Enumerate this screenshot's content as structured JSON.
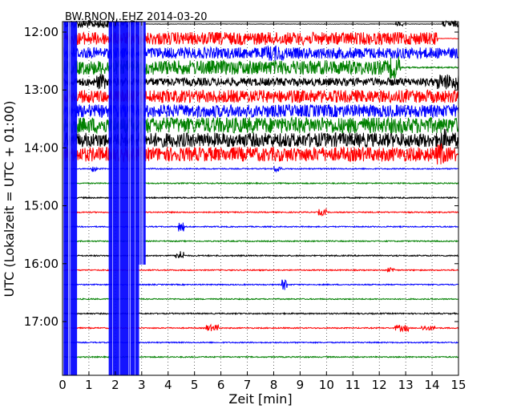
{
  "chart_data": {
    "type": "line",
    "title": "BW.RNON..EHZ 2014-03-20",
    "xlabel": "Zeit  [min]",
    "ylabel": "UTC (Lokalzeit = UTC + 01:00)",
    "xlim": [
      0,
      15
    ],
    "x_ticks": [
      "0",
      "1",
      "2",
      "3",
      "4",
      "5",
      "6",
      "7",
      "8",
      "9",
      "10",
      "11",
      "12",
      "13",
      "14",
      "15"
    ],
    "y_ticks": [
      {
        "label": "12:00",
        "row": 0
      },
      {
        "label": "13:00",
        "row": 4
      },
      {
        "label": "14:00",
        "row": 8
      },
      {
        "label": "15:00",
        "row": 12
      },
      {
        "label": "16:00",
        "row": 16
      },
      {
        "label": "17:00",
        "row": 20
      }
    ],
    "row_minutes": 15,
    "grid": "vertical-dotted",
    "colors": [
      "#000000",
      "#ff0000",
      "#0000ff",
      "#008000"
    ],
    "traces": [
      {
        "start": "11:45",
        "color": "#000000",
        "noise": 0.28,
        "events": [
          {
            "t": 0.1,
            "w": 2.7,
            "a": 5
          },
          {
            "t": 12.6,
            "w": 0.3,
            "a": 3
          },
          {
            "t": 14.4,
            "w": 0.6,
            "a": 4
          }
        ]
      },
      {
        "start": "12:00",
        "color": "#ff0000",
        "noise": 0.35,
        "events": [
          {
            "t": 0.1,
            "w": 14.1,
            "a": 8
          }
        ]
      },
      {
        "start": "12:15",
        "color": "#0000ff",
        "noise": 0.7,
        "events": [
          {
            "t": 0.0,
            "w": 7.7,
            "a": 7
          },
          {
            "t": 7.7,
            "w": 0.7,
            "a": 10
          },
          {
            "t": 8.4,
            "w": 6.6,
            "a": 7
          }
        ]
      },
      {
        "start": "12:30",
        "color": "#008000",
        "noise": 0.9,
        "events": [
          {
            "t": 0.0,
            "w": 12.4,
            "a": 9
          },
          {
            "t": 12.4,
            "w": 0.4,
            "a": 14
          }
        ]
      },
      {
        "start": "12:45",
        "color": "#000000",
        "noise": 0.6,
        "events": [
          {
            "t": 0.0,
            "w": 15,
            "a": 5
          },
          {
            "t": 1.3,
            "w": 0.3,
            "a": 10
          },
          {
            "t": 14.2,
            "w": 0.8,
            "a": 10
          }
        ]
      },
      {
        "start": "13:00",
        "color": "#ff0000",
        "noise": 0.8,
        "events": [
          {
            "t": 0.0,
            "w": 15,
            "a": 8
          }
        ]
      },
      {
        "start": "13:15",
        "color": "#0000ff",
        "noise": 0.8,
        "events": [
          {
            "t": 0.0,
            "w": 15,
            "a": 8
          }
        ]
      },
      {
        "start": "13:30",
        "color": "#008000",
        "noise": 1.0,
        "events": [
          {
            "t": 0.0,
            "w": 15,
            "a": 10
          }
        ]
      },
      {
        "start": "13:45",
        "color": "#000000",
        "noise": 0.9,
        "events": [
          {
            "t": 0.0,
            "w": 15,
            "a": 9
          },
          {
            "t": 14.3,
            "w": 0.3,
            "a": 14
          }
        ]
      },
      {
        "start": "14:00",
        "color": "#ff0000",
        "noise": 0.9,
        "events": [
          {
            "t": 0.0,
            "w": 14.9,
            "a": 9
          },
          {
            "t": 14.2,
            "w": 0.3,
            "a": 14
          }
        ]
      },
      {
        "start": "14:15",
        "color": "#0000ff",
        "noise": 0.7,
        "events": [
          {
            "t": 1.1,
            "w": 0.2,
            "a": 4
          },
          {
            "t": 8.0,
            "w": 0.3,
            "a": 4
          }
        ]
      },
      {
        "start": "14:30",
        "color": "#008000",
        "noise": 0.7,
        "events": []
      },
      {
        "start": "14:45",
        "color": "#000000",
        "noise": 0.8,
        "events": []
      },
      {
        "start": "15:00",
        "color": "#ff0000",
        "noise": 0.7,
        "events": [
          {
            "t": 9.7,
            "w": 0.3,
            "a": 4
          }
        ]
      },
      {
        "start": "15:15",
        "color": "#0000ff",
        "noise": 0.7,
        "events": [
          {
            "t": 4.4,
            "w": 0.2,
            "a": 6
          }
        ]
      },
      {
        "start": "15:30",
        "color": "#008000",
        "noise": 0.7,
        "events": []
      },
      {
        "start": "15:45",
        "color": "#000000",
        "noise": 0.8,
        "events": [
          {
            "t": 4.3,
            "w": 0.3,
            "a": 6
          }
        ]
      },
      {
        "start": "16:00",
        "color": "#ff0000",
        "noise": 0.7,
        "events": [
          {
            "t": 12.3,
            "w": 0.3,
            "a": 3
          }
        ]
      },
      {
        "start": "16:15",
        "color": "#0000ff",
        "noise": 0.7,
        "events": [
          {
            "t": 8.3,
            "w": 0.2,
            "a": 7
          }
        ]
      },
      {
        "start": "16:30",
        "color": "#008000",
        "noise": 0.7,
        "events": []
      },
      {
        "start": "16:45",
        "color": "#000000",
        "noise": 0.8,
        "events": []
      },
      {
        "start": "17:00",
        "color": "#ff0000",
        "noise": 0.7,
        "events": [
          {
            "t": 5.4,
            "w": 0.5,
            "a": 4
          },
          {
            "t": 12.6,
            "w": 0.5,
            "a": 4
          },
          {
            "t": 13.6,
            "w": 0.5,
            "a": 3
          }
        ]
      },
      {
        "start": "17:15",
        "color": "#0000ff",
        "noise": 0.7,
        "events": []
      },
      {
        "start": "17:30",
        "color": "#008000",
        "noise": 0.7,
        "events": []
      }
    ],
    "disturbances": [
      {
        "x_start": 0.0,
        "x_end": 0.55,
        "color": "#0000ff"
      },
      {
        "x_start": 1.75,
        "x_end": 2.9,
        "color": "#0000ff"
      },
      {
        "x_start": 2.9,
        "x_end": 3.15,
        "color": "#0000ff",
        "partial": true
      }
    ]
  }
}
